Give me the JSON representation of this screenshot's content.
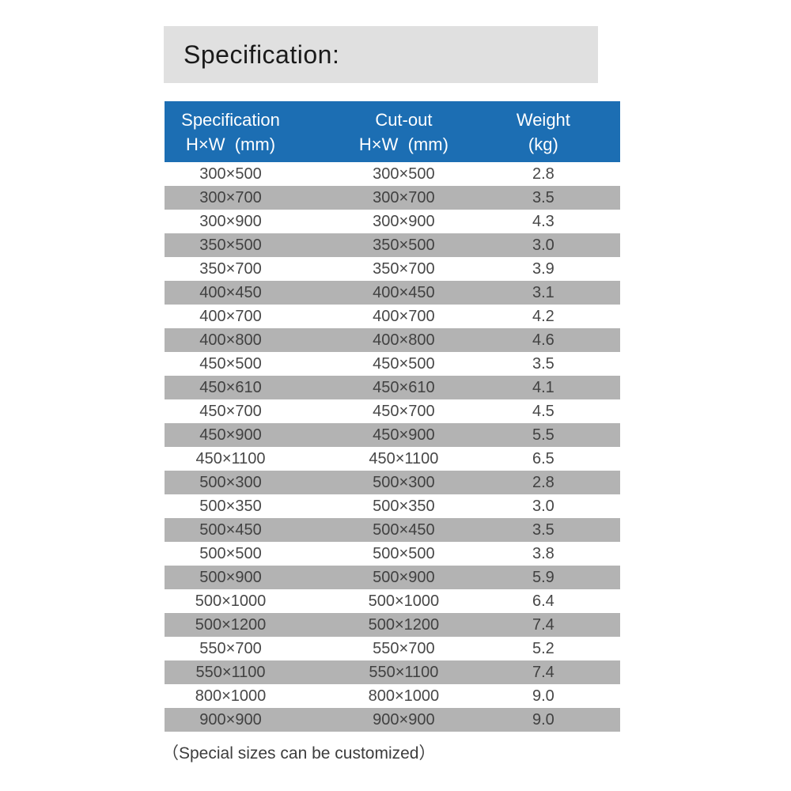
{
  "page": {
    "title": "Specification:",
    "footer": "（Special sizes can be customized）"
  },
  "colors": {
    "header_bg": "#1c6eb3",
    "header_text": "#ffffff",
    "alt_row_bg": "#b3b3b3",
    "title_bar_bg": "#e0e0e0",
    "body_text": "#474747"
  },
  "table": {
    "columns": [
      {
        "line1": "Specification",
        "line2": "H×W  (mm)"
      },
      {
        "line1": "Cut-out",
        "line2": "H×W  (mm)"
      },
      {
        "line1": "Weight",
        "line2": "(kg)"
      }
    ],
    "rows": [
      [
        "300×500",
        "300×500",
        "2.8"
      ],
      [
        "300×700",
        "300×700",
        "3.5"
      ],
      [
        "300×900",
        "300×900",
        "4.3"
      ],
      [
        "350×500",
        "350×500",
        "3.0"
      ],
      [
        "350×700",
        "350×700",
        "3.9"
      ],
      [
        "400×450",
        "400×450",
        "3.1"
      ],
      [
        "400×700",
        "400×700",
        "4.2"
      ],
      [
        "400×800",
        "400×800",
        "4.6"
      ],
      [
        "450×500",
        "450×500",
        "3.5"
      ],
      [
        "450×610",
        "450×610",
        "4.1"
      ],
      [
        "450×700",
        "450×700",
        "4.5"
      ],
      [
        "450×900",
        "450×900",
        "5.5"
      ],
      [
        "450×1100",
        "450×1100",
        "6.5"
      ],
      [
        "500×300",
        "500×300",
        "2.8"
      ],
      [
        "500×350",
        "500×350",
        "3.0"
      ],
      [
        "500×450",
        "500×450",
        "3.5"
      ],
      [
        "500×500",
        "500×500",
        "3.8"
      ],
      [
        "500×900",
        "500×900",
        "5.9"
      ],
      [
        "500×1000",
        "500×1000",
        "6.4"
      ],
      [
        "500×1200",
        "500×1200",
        "7.4"
      ],
      [
        "550×700",
        "550×700",
        "5.2"
      ],
      [
        "550×1100",
        "550×1100",
        "7.4"
      ],
      [
        "800×1000",
        "800×1000",
        "9.0"
      ],
      [
        "900×900",
        "900×900",
        "9.0"
      ]
    ]
  }
}
